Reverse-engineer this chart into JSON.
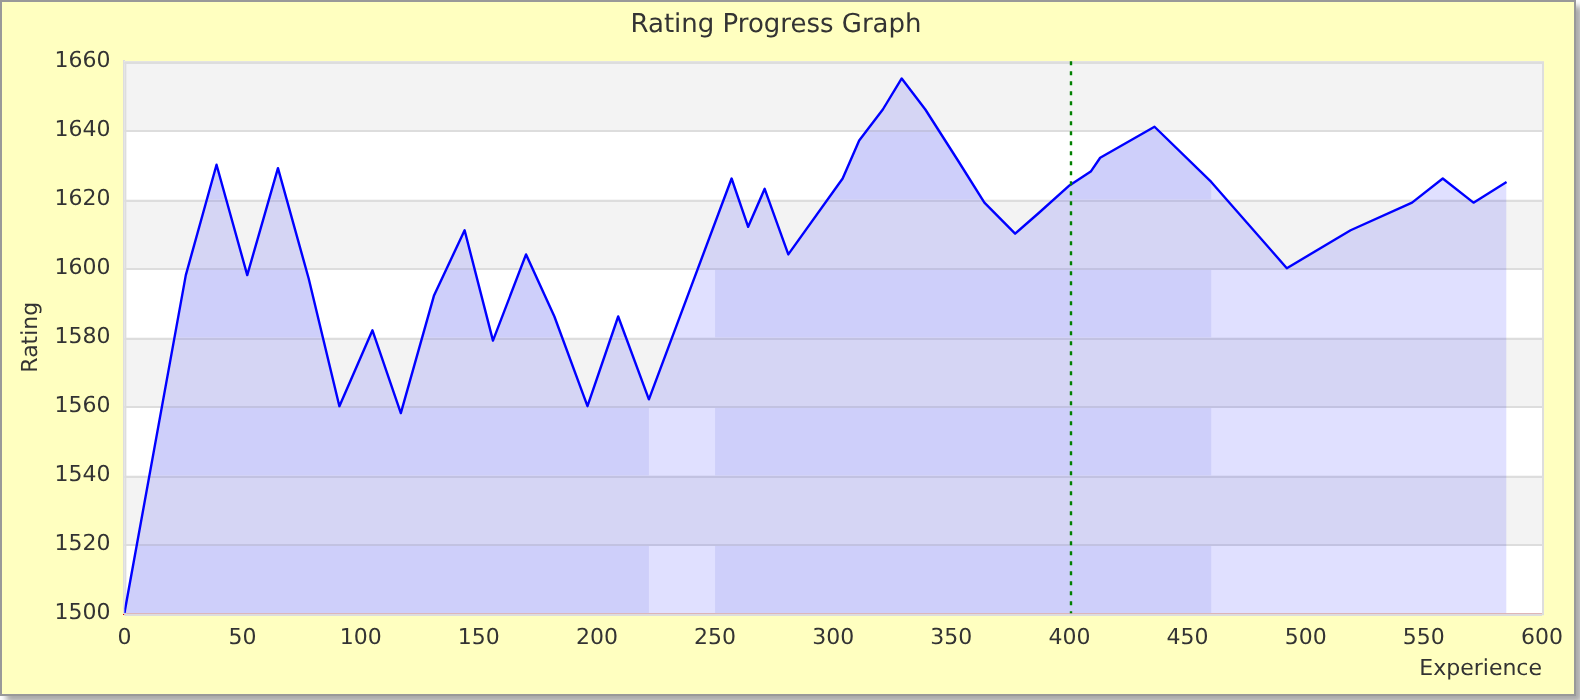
{
  "chart_data": {
    "type": "area",
    "title": "Rating Progress Graph",
    "xlabel": "Experience",
    "ylabel": "Rating",
    "x": [
      0,
      26,
      39,
      52,
      65,
      78,
      91,
      105,
      117,
      131,
      144,
      156,
      170,
      182,
      196,
      209,
      222,
      257,
      264,
      271,
      281,
      304,
      311,
      321,
      329,
      339,
      353,
      364,
      377,
      387,
      400,
      409,
      413,
      436,
      460,
      492,
      519,
      545,
      558,
      571,
      585
    ],
    "series": [
      {
        "color": "#0000ff",
        "values": [
          1500,
          1598,
          1630,
          1598,
          1629,
          1597,
          1560,
          1582,
          1558,
          1592,
          1611,
          1579,
          1604,
          1586,
          1560,
          1586,
          1562,
          1626,
          1612,
          1623,
          1604,
          1626,
          1637,
          1646,
          1655,
          1646,
          1631,
          1619,
          1610,
          1616,
          1624,
          1628,
          1632,
          1641,
          1625,
          1600,
          1611,
          1619,
          1626,
          1619,
          1625
        ]
      }
    ],
    "bands": [
      {
        "axis": "x",
        "from": 0,
        "to": 222,
        "color": "#ebecfa"
      },
      {
        "axis": "x",
        "from": 250,
        "to": 460,
        "color": "#ebecfa"
      }
    ],
    "ref_lines": [
      {
        "axis": "x",
        "value": 400,
        "color": "#008000",
        "line_style": "dotted"
      }
    ],
    "xlim": [
      0,
      600
    ],
    "xticks": [
      0,
      50,
      100,
      150,
      200,
      250,
      300,
      350,
      400,
      450,
      500,
      550,
      600
    ],
    "ylim": [
      1500,
      1660
    ],
    "yticks": [
      1500,
      1520,
      1540,
      1560,
      1580,
      1600,
      1620,
      1640,
      1660
    ],
    "grid": "y",
    "legend": false,
    "marker": "none",
    "line_style": "solid"
  }
}
